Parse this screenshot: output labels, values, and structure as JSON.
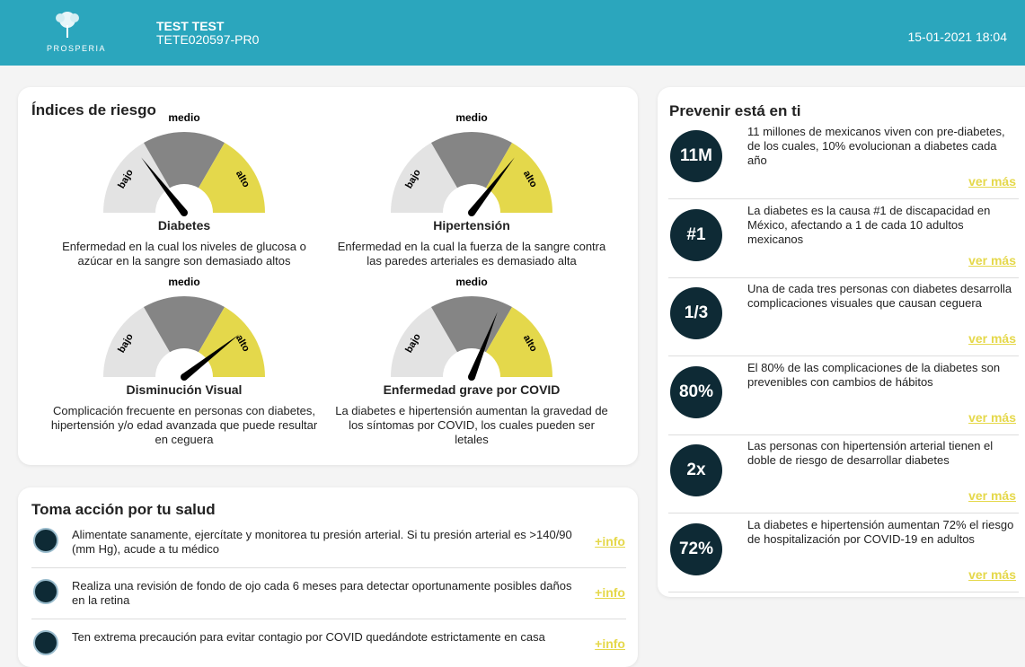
{
  "header": {
    "brand": "PROSPERIA",
    "name": "TEST TEST",
    "id": "TETE020597-PR0",
    "datetime": "15-01-2021 18:04"
  },
  "risk": {
    "title": "Índices de riesgo",
    "zone_labels": {
      "low": "bajo",
      "mid": "medio",
      "high": "alto"
    },
    "gauge_range": [
      0,
      100
    ],
    "gauges": [
      {
        "name": "Diabetes",
        "description": "Enfermedad en la cual los niveles de glucosa o azúcar en la sangre son demasiado altos",
        "risk": 29
      },
      {
        "name": "Hipertensión",
        "description": "Enfermedad en la cual la fuerza de la sangre contra las paredes arteriales es demasiado alta",
        "risk": 71
      },
      {
        "name": "Disminución Visual",
        "description": "Complicación frecuente en personas con diabetes, hipertensión y/o edad avanzada que puede resultar en ceguera",
        "risk": 79
      },
      {
        "name": "Enfermedad grave por COVID",
        "description": "La diabetes e hipertensión aumentan la gravedad de los síntomas por COVID, los cuales pueden ser letales",
        "risk": 62
      }
    ]
  },
  "prevention": {
    "title": "Prevenir está en ti",
    "items": [
      {
        "stat": "11M",
        "text": "11 millones de mexicanos viven con pre-diabetes, de los cuales, 10% evolucionan a diabetes cada año",
        "link": "ver más"
      },
      {
        "stat": "#1",
        "text": "La diabetes es la causa #1 de discapacidad en México, afectando a 1 de cada 10 adultos mexicanos",
        "link": "ver más"
      },
      {
        "stat": "1/3",
        "text": "Una de cada tres personas con diabetes desarrolla complicaciones visuales que causan ceguera",
        "link": "ver más"
      },
      {
        "stat": "80%",
        "text": "El 80% de las complicaciones de la diabetes son prevenibles con cambios de hábitos",
        "link": "ver más"
      },
      {
        "stat": "2x",
        "text": "Las personas con hipertensión arterial tienen el doble de riesgo de desarrollar diabetes",
        "link": "ver más"
      },
      {
        "stat": "72%",
        "text": "La diabetes e hipertensión aumentan 72% el riesgo de hospitalización por COVID-19 en adultos",
        "link": "ver más"
      }
    ]
  },
  "actions": {
    "title": "Toma acción por tu salud",
    "items": [
      {
        "text": "Alimentate sanamente, ejercítate y monitorea tu presión arterial. Si tu presión arterial es >140/90 (mm Hg), acude a tu médico",
        "link": "+info"
      },
      {
        "text": "Realiza una revisión de fondo de ojo cada 6 meses para detectar oportunamente posibles daños en la retina",
        "link": "+info"
      },
      {
        "text": "Ten extrema precaución para evitar contagio por COVID quedándote estrictamente en casa",
        "link": "+info"
      }
    ]
  }
}
